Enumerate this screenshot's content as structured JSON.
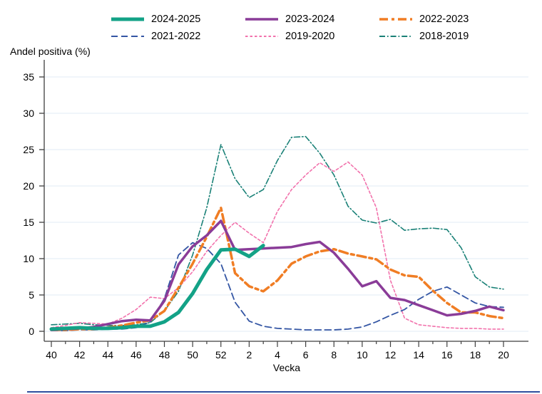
{
  "page": {
    "background": "#ffffff"
  },
  "labels": {
    "y_axis_title": "Andel positiva (%)",
    "x_axis_title": "Vecka"
  },
  "colors": {
    "grid": "#e2ebf4",
    "axis": "#3f3f3f",
    "text": "#000000",
    "bottom_rule": "#2f4e9e"
  },
  "chart_data": {
    "type": "line",
    "title": "",
    "ylabel": "Andel positiva (%)",
    "xlabel": "Vecka",
    "ylim": [
      0,
      35
    ],
    "yticks": [
      0,
      5,
      10,
      15,
      20,
      25,
      30,
      35
    ],
    "grid": "horizontal-only",
    "legend_position": "top-center-two-rows",
    "weeks": [
      40,
      41,
      42,
      43,
      44,
      45,
      46,
      47,
      48,
      49,
      50,
      51,
      52,
      1,
      2,
      3,
      4,
      5,
      6,
      7,
      8,
      9,
      10,
      11,
      12,
      13,
      14,
      15,
      16,
      17,
      18,
      19,
      20
    ],
    "x_major_tick_labels": [
      40,
      42,
      44,
      46,
      48,
      50,
      52,
      2,
      4,
      6,
      8,
      10,
      12,
      14,
      16,
      18,
      20
    ],
    "series": [
      {
        "name": "2024-2025",
        "color": "#13a287",
        "style": "solid",
        "width": 5,
        "values": [
          0.3,
          0.4,
          0.5,
          0.4,
          0.4,
          0.5,
          0.7,
          0.7,
          1.3,
          2.6,
          5.2,
          8.5,
          11.2,
          11.3,
          10.3,
          11.8,
          null,
          null,
          null,
          null,
          null,
          null,
          null,
          null,
          null,
          null,
          null,
          null,
          null,
          null,
          null,
          null,
          null
        ]
      },
      {
        "name": "2023-2024",
        "color": "#8a3c98",
        "style": "solid",
        "width": 3.5,
        "values": [
          0.2,
          0.3,
          0.4,
          0.6,
          1.0,
          1.4,
          1.6,
          1.5,
          4.2,
          9.2,
          11.7,
          13.2,
          15.2,
          11.2,
          11.3,
          11.4,
          11.5,
          11.6,
          12.0,
          12.3,
          10.8,
          8.6,
          6.2,
          6.9,
          4.6,
          4.3,
          3.6,
          2.9,
          2.2,
          2.4,
          2.8,
          3.4,
          2.9
        ]
      },
      {
        "name": "2022-2023",
        "color": "#f07d24",
        "style": "dash-dot",
        "width": 3.5,
        "values": [
          0.2,
          0.2,
          0.3,
          0.3,
          0.5,
          0.8,
          1.2,
          1.5,
          2.8,
          6.0,
          9.3,
          13.0,
          17.0,
          8.0,
          6.2,
          5.5,
          7.0,
          9.3,
          10.3,
          11.0,
          11.3,
          10.7,
          10.3,
          9.9,
          8.5,
          7.7,
          7.5,
          5.6,
          3.9,
          2.6,
          2.6,
          2.1,
          1.8
        ]
      },
      {
        "name": "2021-2022",
        "color": "#3456a4",
        "style": "dashed",
        "width": 1.8,
        "values": [
          0.1,
          0.1,
          0.2,
          0.2,
          0.3,
          0.3,
          0.5,
          1.3,
          4.5,
          10.5,
          12.2,
          11.4,
          9.3,
          4.0,
          1.4,
          0.7,
          0.4,
          0.3,
          0.2,
          0.2,
          0.2,
          0.3,
          0.6,
          1.3,
          2.2,
          3.0,
          4.4,
          5.5,
          6.1,
          5.0,
          3.9,
          3.4,
          3.3
        ]
      },
      {
        "name": "2019-2020",
        "color": "#f272ac",
        "style": "short-dash",
        "width": 1.6,
        "values": [
          0.5,
          0.8,
          1.2,
          1.1,
          1.0,
          1.8,
          3.0,
          4.7,
          4.5,
          6.0,
          8.2,
          11.0,
          13.2,
          15.0,
          13.5,
          12.2,
          16.5,
          19.5,
          21.5,
          23.2,
          22.0,
          23.3,
          21.5,
          17.0,
          7.0,
          1.8,
          0.9,
          0.7,
          0.5,
          0.4,
          0.4,
          0.3,
          0.3
        ]
      },
      {
        "name": "2018-2019",
        "color": "#1a8177",
        "style": "dash-dot-dot",
        "width": 1.6,
        "values": [
          0.9,
          1.0,
          1.1,
          0.9,
          0.8,
          0.8,
          0.9,
          1.2,
          2.8,
          5.5,
          10.5,
          17.0,
          25.7,
          21.0,
          18.4,
          19.5,
          23.5,
          26.7,
          26.8,
          24.5,
          21.5,
          17.2,
          15.3,
          14.9,
          15.4,
          13.9,
          14.1,
          14.2,
          14.0,
          11.5,
          7.5,
          6.1,
          5.8
        ]
      }
    ],
    "legend_rows": [
      [
        "2024-2025",
        "2023-2024",
        "2022-2023"
      ],
      [
        "2021-2022",
        "2019-2020",
        "2018-2019"
      ]
    ]
  }
}
